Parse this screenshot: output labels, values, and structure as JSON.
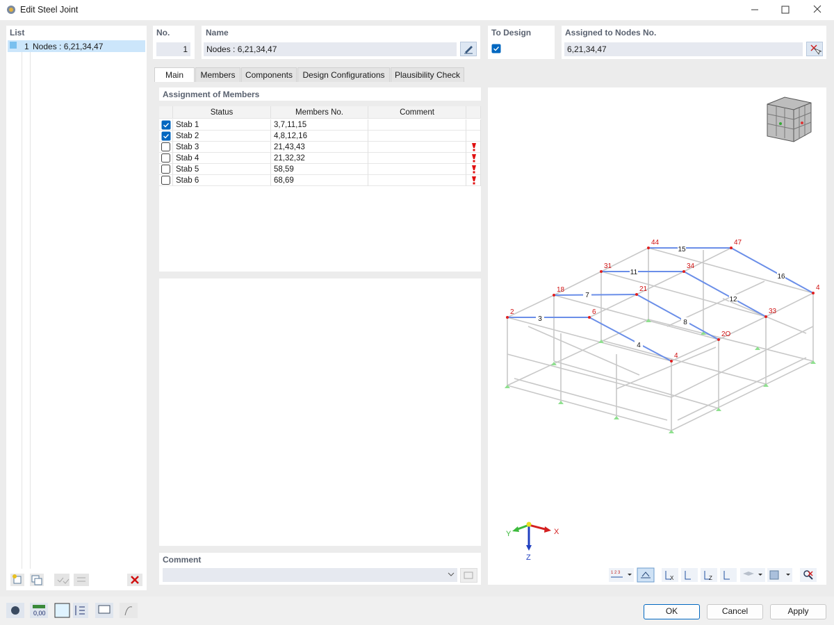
{
  "window": {
    "title": "Edit Steel Joint"
  },
  "list": {
    "header": "List",
    "items": [
      {
        "number": "1",
        "label": "Nodes : 6,21,34,47"
      }
    ]
  },
  "fields": {
    "no_label": "No.",
    "no_value": "1",
    "name_label": "Name",
    "name_value": "Nodes : 6,21,34,47",
    "to_design_label": "To Design",
    "to_design_checked": true,
    "assigned_label": "Assigned to Nodes No.",
    "assigned_value": "6,21,34,47"
  },
  "tabs": [
    "Main",
    "Members",
    "Components",
    "Design Configurations",
    "Plausibility Check"
  ],
  "assignment": {
    "title": "Assignment of Members",
    "columns": [
      "Status",
      "Members No.",
      "Comment"
    ],
    "rows": [
      {
        "status": "Stab 1",
        "checked": true,
        "members": "3,7,11,15",
        "warning": false
      },
      {
        "status": "Stab 2",
        "checked": true,
        "members": "4,8,12,16",
        "warning": false
      },
      {
        "status": "Stab 3",
        "checked": false,
        "members": "21,43,43",
        "warning": true
      },
      {
        "status": "Stab 4",
        "checked": false,
        "members": "21,32,32",
        "warning": true
      },
      {
        "status": "Stab 5",
        "checked": false,
        "members": "58,59",
        "warning": true
      },
      {
        "status": "Stab 6",
        "checked": false,
        "members": "68,69",
        "warning": true
      }
    ]
  },
  "comment": {
    "label": "Comment"
  },
  "view": {
    "nodes": [
      "44",
      "47",
      "31",
      "34",
      "18",
      "21",
      "2",
      "6",
      "4",
      "33",
      "2O",
      "4"
    ],
    "members": [
      "15",
      "11",
      "16",
      "7",
      "12",
      "3",
      "8",
      "4"
    ],
    "axes": {
      "x": "X",
      "y": "Y",
      "z": "Z"
    },
    "toolbar_numbering": "1 2 3"
  },
  "bottom_toolbar": {
    "units_icon": "0,00"
  },
  "buttons": {
    "ok": "OK",
    "cancel": "Cancel",
    "apply": "Apply"
  }
}
